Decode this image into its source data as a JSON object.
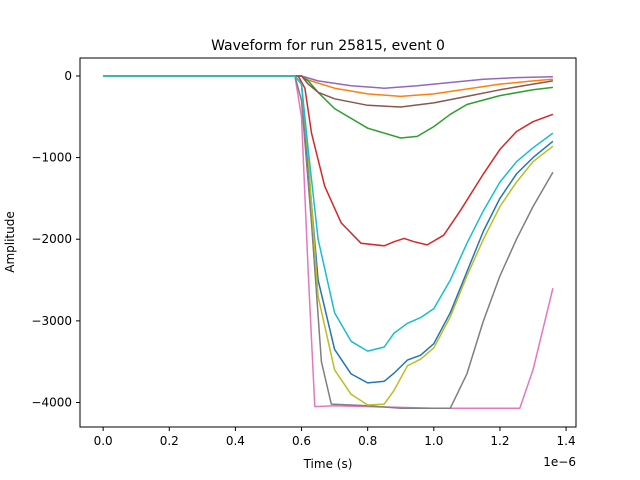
{
  "chart_data": {
    "type": "line",
    "title": "Waveform for run 25815, event 0",
    "xlabel": "Time (s)",
    "ylabel": "Amplitude",
    "x_offset_label": "1e−6",
    "x_scale": 1e-06,
    "xlim": [
      -0.07,
      1.43
    ],
    "ylim": [
      -4300,
      220
    ],
    "x_ticks": [
      0.0,
      0.2,
      0.4,
      0.6,
      0.8,
      1.0,
      1.2,
      1.4
    ],
    "x_tick_labels": [
      "0.0",
      "0.2",
      "0.4",
      "0.6",
      "0.8",
      "1.0",
      "1.2",
      "1.4"
    ],
    "y_ticks": [
      0,
      -1000,
      -2000,
      -3000,
      -4000
    ],
    "y_tick_labels": [
      "0",
      "−1000",
      "−2000",
      "−3000",
      "−4000"
    ],
    "grid": false,
    "legend": false,
    "series": [
      {
        "color": "#1f77b4",
        "points": [
          [
            0,
            0
          ],
          [
            0.58,
            0
          ],
          [
            0.6,
            -100
          ],
          [
            0.62,
            -1100
          ],
          [
            0.65,
            -2500
          ],
          [
            0.7,
            -3350
          ],
          [
            0.75,
            -3650
          ],
          [
            0.8,
            -3760
          ],
          [
            0.85,
            -3740
          ],
          [
            0.88,
            -3640
          ],
          [
            0.92,
            -3480
          ],
          [
            0.96,
            -3420
          ],
          [
            1.0,
            -3280
          ],
          [
            1.05,
            -2900
          ],
          [
            1.1,
            -2400
          ],
          [
            1.15,
            -1900
          ],
          [
            1.2,
            -1500
          ],
          [
            1.25,
            -1200
          ],
          [
            1.3,
            -1000
          ],
          [
            1.36,
            -800
          ]
        ]
      },
      {
        "color": "#ff7f0e",
        "points": [
          [
            0,
            0
          ],
          [
            0.6,
            0
          ],
          [
            0.62,
            -50
          ],
          [
            0.7,
            -150
          ],
          [
            0.8,
            -220
          ],
          [
            0.9,
            -250
          ],
          [
            1.0,
            -220
          ],
          [
            1.1,
            -160
          ],
          [
            1.2,
            -100
          ],
          [
            1.3,
            -60
          ],
          [
            1.36,
            -40
          ]
        ]
      },
      {
        "color": "#2ca02c",
        "points": [
          [
            0,
            0
          ],
          [
            0.6,
            0
          ],
          [
            0.62,
            -60
          ],
          [
            0.65,
            -200
          ],
          [
            0.7,
            -400
          ],
          [
            0.8,
            -640
          ],
          [
            0.9,
            -760
          ],
          [
            0.95,
            -740
          ],
          [
            1.0,
            -620
          ],
          [
            1.05,
            -470
          ],
          [
            1.1,
            -350
          ],
          [
            1.2,
            -240
          ],
          [
            1.3,
            -170
          ],
          [
            1.36,
            -140
          ]
        ]
      },
      {
        "color": "#d62728",
        "points": [
          [
            0,
            0
          ],
          [
            0.59,
            0
          ],
          [
            0.61,
            -150
          ],
          [
            0.63,
            -700
          ],
          [
            0.67,
            -1350
          ],
          [
            0.72,
            -1800
          ],
          [
            0.78,
            -2050
          ],
          [
            0.85,
            -2080
          ],
          [
            0.88,
            -2030
          ],
          [
            0.91,
            -1990
          ],
          [
            0.94,
            -2030
          ],
          [
            0.98,
            -2070
          ],
          [
            1.03,
            -1950
          ],
          [
            1.08,
            -1650
          ],
          [
            1.15,
            -1200
          ],
          [
            1.2,
            -900
          ],
          [
            1.25,
            -680
          ],
          [
            1.3,
            -560
          ],
          [
            1.36,
            -470
          ]
        ]
      },
      {
        "color": "#9467bd",
        "points": [
          [
            0,
            0
          ],
          [
            0.6,
            0
          ],
          [
            0.65,
            -60
          ],
          [
            0.75,
            -120
          ],
          [
            0.85,
            -150
          ],
          [
            0.95,
            -120
          ],
          [
            1.05,
            -80
          ],
          [
            1.15,
            -40
          ],
          [
            1.25,
            -20
          ],
          [
            1.36,
            -10
          ]
        ]
      },
      {
        "color": "#8c564b",
        "points": [
          [
            0,
            0
          ],
          [
            0.6,
            0
          ],
          [
            0.62,
            -100
          ],
          [
            0.65,
            -200
          ],
          [
            0.7,
            -280
          ],
          [
            0.8,
            -360
          ],
          [
            0.9,
            -380
          ],
          [
            1.0,
            -330
          ],
          [
            1.1,
            -250
          ],
          [
            1.2,
            -170
          ],
          [
            1.3,
            -100
          ],
          [
            1.36,
            -60
          ]
        ]
      },
      {
        "color": "#e377c2",
        "points": [
          [
            0,
            0
          ],
          [
            0.58,
            0
          ],
          [
            0.6,
            -500
          ],
          [
            0.62,
            -2400
          ],
          [
            0.64,
            -4050
          ],
          [
            0.7,
            -4040
          ],
          [
            0.8,
            -4050
          ],
          [
            0.9,
            -4060
          ],
          [
            1.0,
            -4070
          ],
          [
            1.1,
            -4070
          ],
          [
            1.2,
            -4070
          ],
          [
            1.26,
            -4070
          ],
          [
            1.3,
            -3600
          ],
          [
            1.36,
            -2600
          ]
        ]
      },
      {
        "color": "#7f7f7f",
        "points": [
          [
            0,
            0
          ],
          [
            0.58,
            0
          ],
          [
            0.6,
            -300
          ],
          [
            0.63,
            -1800
          ],
          [
            0.66,
            -3500
          ],
          [
            0.69,
            -4020
          ],
          [
            0.8,
            -4040
          ],
          [
            0.9,
            -4070
          ],
          [
            1.0,
            -4070
          ],
          [
            1.05,
            -4070
          ],
          [
            1.1,
            -3650
          ],
          [
            1.15,
            -3000
          ],
          [
            1.2,
            -2450
          ],
          [
            1.25,
            -2000
          ],
          [
            1.3,
            -1600
          ],
          [
            1.36,
            -1180
          ]
        ]
      },
      {
        "color": "#bcbd22",
        "points": [
          [
            0,
            0
          ],
          [
            0.58,
            0
          ],
          [
            0.6,
            -100
          ],
          [
            0.62,
            -1000
          ],
          [
            0.65,
            -2700
          ],
          [
            0.7,
            -3600
          ],
          [
            0.75,
            -3900
          ],
          [
            0.8,
            -4030
          ],
          [
            0.85,
            -4020
          ],
          [
            0.88,
            -3850
          ],
          [
            0.92,
            -3550
          ],
          [
            0.96,
            -3470
          ],
          [
            1.0,
            -3330
          ],
          [
            1.05,
            -2950
          ],
          [
            1.1,
            -2450
          ],
          [
            1.15,
            -2000
          ],
          [
            1.2,
            -1600
          ],
          [
            1.25,
            -1300
          ],
          [
            1.3,
            -1050
          ],
          [
            1.36,
            -860
          ]
        ]
      },
      {
        "color": "#17becf",
        "points": [
          [
            0,
            0
          ],
          [
            0.58,
            0
          ],
          [
            0.6,
            -100
          ],
          [
            0.62,
            -900
          ],
          [
            0.65,
            -2000
          ],
          [
            0.7,
            -2900
          ],
          [
            0.75,
            -3250
          ],
          [
            0.8,
            -3370
          ],
          [
            0.85,
            -3320
          ],
          [
            0.88,
            -3150
          ],
          [
            0.92,
            -3030
          ],
          [
            0.96,
            -2960
          ],
          [
            1.0,
            -2850
          ],
          [
            1.05,
            -2500
          ],
          [
            1.1,
            -2050
          ],
          [
            1.15,
            -1650
          ],
          [
            1.2,
            -1300
          ],
          [
            1.25,
            -1050
          ],
          [
            1.3,
            -880
          ],
          [
            1.36,
            -700
          ]
        ]
      }
    ]
  }
}
